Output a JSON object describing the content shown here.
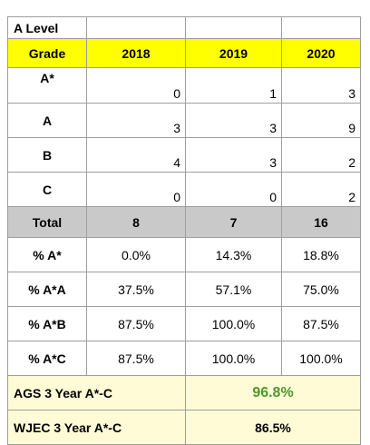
{
  "title": "A Level",
  "header": {
    "label": "Grade",
    "years": [
      "2018",
      "2019",
      "2020"
    ]
  },
  "grades": [
    {
      "grade": "A*",
      "values": [
        "0",
        "1",
        "3"
      ]
    },
    {
      "grade": "A",
      "values": [
        "3",
        "3",
        "9"
      ]
    },
    {
      "grade": "B",
      "values": [
        "4",
        "3",
        "2"
      ]
    },
    {
      "grade": "C",
      "values": [
        "0",
        "0",
        "2"
      ]
    }
  ],
  "total": {
    "label": "Total",
    "values": [
      "8",
      "7",
      "16"
    ]
  },
  "percentages": [
    {
      "label": "% A*",
      "values": [
        "0.0%",
        "14.3%",
        "18.8%"
      ]
    },
    {
      "label": "% A*A",
      "values": [
        "37.5%",
        "57.1%",
        "75.0%"
      ]
    },
    {
      "label": "% A*B",
      "values": [
        "87.5%",
        "100.0%",
        "87.5%"
      ]
    },
    {
      "label": "% A*C",
      "values": [
        "87.5%",
        "100.0%",
        "100.0%"
      ]
    }
  ],
  "summary": [
    {
      "label": "AGS 3 Year A*-C",
      "value": "96.8%"
    },
    {
      "label": "WJEC 3 Year A*-C",
      "value": "86.5%"
    }
  ],
  "colors": {
    "header": "#ffff00",
    "total_row": "#c9c9c9",
    "summary_bg": "#fffbd6",
    "highlight_text": "#4a9a28"
  }
}
